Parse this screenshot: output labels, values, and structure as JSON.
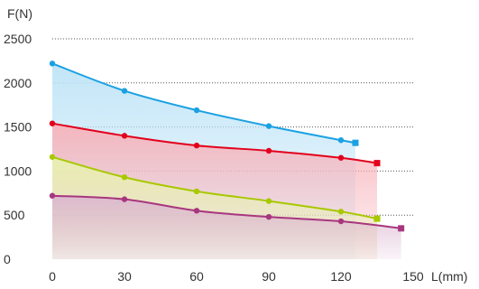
{
  "chart_data": {
    "type": "area",
    "ylabel": "F(N)",
    "xlabel": "L(mm)",
    "ylim": [
      0,
      2500
    ],
    "xlim": [
      0,
      150
    ],
    "y_ticks": [
      0,
      500,
      1000,
      1500,
      2000,
      2500
    ],
    "x_ticks": [
      0,
      30,
      60,
      90,
      120,
      150
    ],
    "grid": "horizontal dotted",
    "series": [
      {
        "color": "#1ba1e2",
        "fill": "#bfe4f7",
        "points": [
          [
            0,
            2220
          ],
          [
            30,
            1910
          ],
          [
            60,
            1690
          ],
          [
            90,
            1510
          ],
          [
            120,
            1350
          ],
          [
            126,
            1320
          ]
        ]
      },
      {
        "color": "#e3001b",
        "fill": "#f7b3bb",
        "points": [
          [
            0,
            1540
          ],
          [
            30,
            1400
          ],
          [
            60,
            1290
          ],
          [
            90,
            1230
          ],
          [
            120,
            1150
          ],
          [
            135,
            1090
          ]
        ]
      },
      {
        "color": "#a8c800",
        "fill": "#e8f2b0",
        "points": [
          [
            0,
            1160
          ],
          [
            30,
            930
          ],
          [
            60,
            770
          ],
          [
            90,
            660
          ],
          [
            120,
            540
          ],
          [
            135,
            460
          ]
        ]
      },
      {
        "color": "#a8367f",
        "fill": "#dcb7cf",
        "points": [
          [
            0,
            720
          ],
          [
            30,
            680
          ],
          [
            60,
            550
          ],
          [
            90,
            480
          ],
          [
            120,
            430
          ],
          [
            145,
            350
          ]
        ]
      }
    ]
  }
}
